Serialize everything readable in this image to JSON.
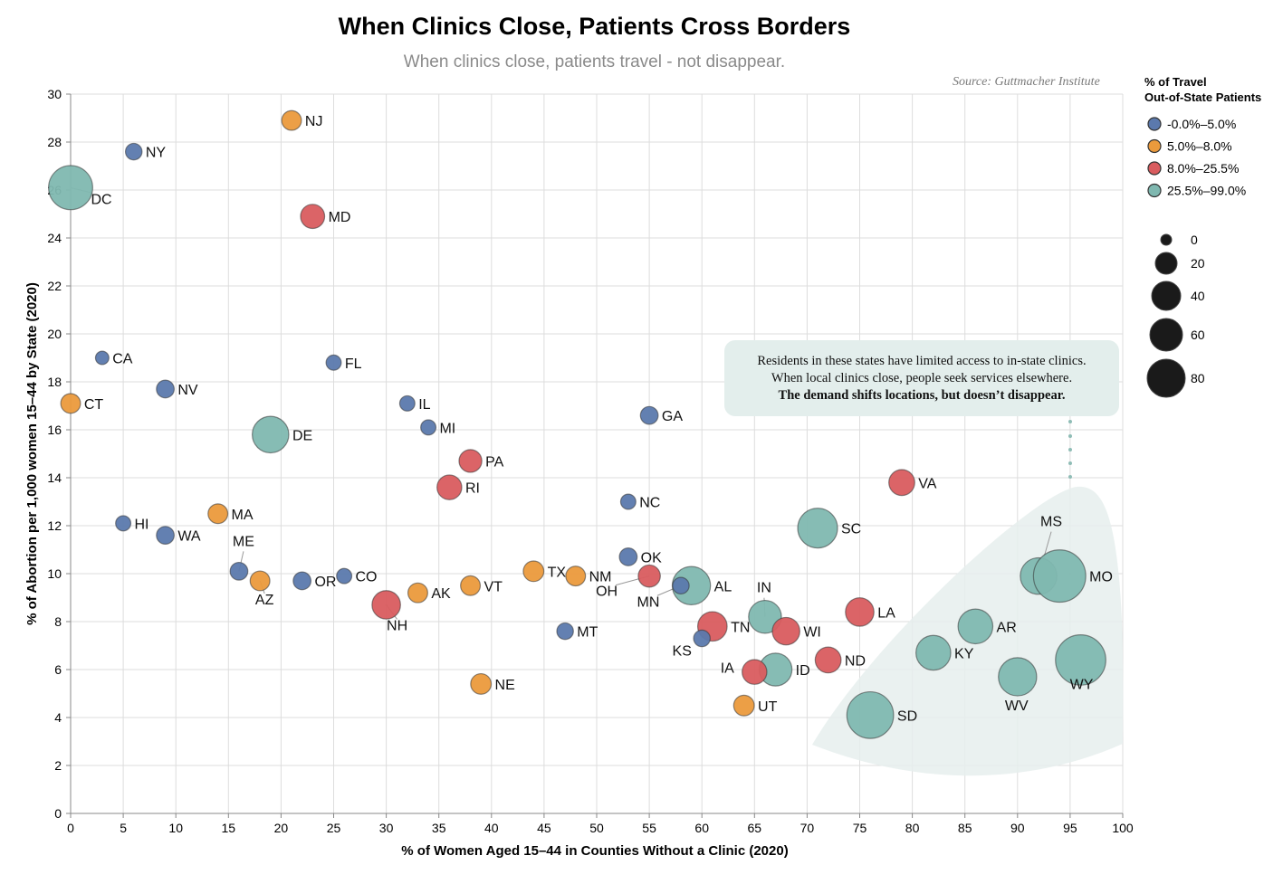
{
  "header": {
    "title": "When Clinics Close, Patients Cross Borders",
    "subtitle": "When clinics close, patients travel - not disappear.",
    "source": "Source: Guttmacher Institute"
  },
  "chart_data": {
    "type": "scatter",
    "title": "When Clinics Close, Patients Cross Borders",
    "subtitle": "When clinics close, patients travel - not disappear.",
    "xlabel": "% of Women Aged 15–44 in Counties Without a Clinic (2020)",
    "ylabel": "% of Abortion per 1,000 women 15–44 by State (2020)",
    "xlim": [
      0,
      100
    ],
    "ylim": [
      0,
      30
    ],
    "x_ticks": [
      0,
      5,
      10,
      15,
      20,
      25,
      30,
      35,
      40,
      45,
      50,
      55,
      60,
      65,
      70,
      75,
      80,
      85,
      90,
      95,
      100
    ],
    "y_ticks": [
      0,
      2,
      4,
      6,
      8,
      10,
      12,
      14,
      16,
      18,
      20,
      22,
      24,
      26,
      28,
      30
    ],
    "grid": true,
    "legend_placement": "right",
    "color_legend": {
      "title": [
        "% of Travel",
        "Out-of-State Patients"
      ],
      "items": [
        {
          "label": "-0.0%–5.0%",
          "color": "#5b79ad"
        },
        {
          "label": "5.0%–8.0%",
          "color": "#eb9a3c"
        },
        {
          "label": "8.0%–25.5%",
          "color": "#d95c5f"
        },
        {
          "label": "25.5%–99.0%",
          "color": "#7fb8b0"
        }
      ]
    },
    "size_legend": {
      "values": [
        0,
        20,
        40,
        60,
        80
      ]
    },
    "annotation": {
      "lines": [
        "Residents in these states have limited access to in-state clinics.",
        "When local clinics close, people seek services elsewhere."
      ],
      "bold_line": "The demand shifts locations, but doesn’t disappear."
    },
    "points": [
      {
        "state": "DC",
        "x": 0,
        "y": 26.1,
        "travel": 65,
        "group": 3
      },
      {
        "state": "NJ",
        "x": 21,
        "y": 28.9,
        "travel": 6,
        "group": 1
      },
      {
        "state": "NY",
        "x": 6,
        "y": 27.6,
        "travel": 3,
        "group": 0
      },
      {
        "state": "MD",
        "x": 23,
        "y": 24.9,
        "travel": 12,
        "group": 2
      },
      {
        "state": "CA",
        "x": 3,
        "y": 19.0,
        "travel": 1,
        "group": 0
      },
      {
        "state": "FL",
        "x": 25,
        "y": 18.8,
        "travel": 2,
        "group": 0
      },
      {
        "state": "NV",
        "x": 9,
        "y": 17.7,
        "travel": 4,
        "group": 0
      },
      {
        "state": "CT",
        "x": 0,
        "y": 17.1,
        "travel": 6,
        "group": 1
      },
      {
        "state": "IL",
        "x": 32,
        "y": 17.1,
        "travel": 2,
        "group": 0
      },
      {
        "state": "GA",
        "x": 55,
        "y": 16.6,
        "travel": 4,
        "group": 0
      },
      {
        "state": "MI",
        "x": 34,
        "y": 16.1,
        "travel": 2,
        "group": 0
      },
      {
        "state": "DE",
        "x": 19,
        "y": 15.8,
        "travel": 40,
        "group": 3
      },
      {
        "state": "PA",
        "x": 38,
        "y": 14.7,
        "travel": 10,
        "group": 2
      },
      {
        "state": "RI",
        "x": 36,
        "y": 13.6,
        "travel": 13,
        "group": 2
      },
      {
        "state": "VA",
        "x": 79,
        "y": 13.8,
        "travel": 15,
        "group": 2
      },
      {
        "state": "NC",
        "x": 53,
        "y": 13.0,
        "travel": 2,
        "group": 0
      },
      {
        "state": "HI",
        "x": 5,
        "y": 12.1,
        "travel": 2,
        "group": 0
      },
      {
        "state": "MA",
        "x": 14,
        "y": 12.5,
        "travel": 6,
        "group": 1
      },
      {
        "state": "SC",
        "x": 71,
        "y": 11.9,
        "travel": 50,
        "group": 3
      },
      {
        "state": "WA",
        "x": 9,
        "y": 11.6,
        "travel": 4,
        "group": 0
      },
      {
        "state": "MS",
        "x": 92,
        "y": 9.9,
        "travel": 40,
        "group": 3
      },
      {
        "state": "MO",
        "x": 94,
        "y": 9.9,
        "travel": 99,
        "group": 3
      },
      {
        "state": "OK",
        "x": 53,
        "y": 10.7,
        "travel": 4,
        "group": 0
      },
      {
        "state": "ME",
        "x": 16,
        "y": 10.1,
        "travel": 4,
        "group": 0
      },
      {
        "state": "TX",
        "x": 44,
        "y": 10.1,
        "travel": 7,
        "group": 1
      },
      {
        "state": "NM",
        "x": 48,
        "y": 9.9,
        "travel": 6,
        "group": 1
      },
      {
        "state": "OH",
        "x": 55,
        "y": 9.9,
        "travel": 9,
        "group": 2
      },
      {
        "state": "CO",
        "x": 26,
        "y": 9.9,
        "travel": 2,
        "group": 0
      },
      {
        "state": "OR",
        "x": 22,
        "y": 9.7,
        "travel": 4,
        "group": 0
      },
      {
        "state": "AZ",
        "x": 18,
        "y": 9.7,
        "travel": 6,
        "group": 1
      },
      {
        "state": "AL",
        "x": 59,
        "y": 9.5,
        "travel": 45,
        "group": 3
      },
      {
        "state": "MN",
        "x": 58,
        "y": 9.5,
        "travel": 3,
        "group": 0
      },
      {
        "state": "VT",
        "x": 38,
        "y": 9.5,
        "travel": 6,
        "group": 1
      },
      {
        "state": "AK",
        "x": 33,
        "y": 9.2,
        "travel": 6,
        "group": 1
      },
      {
        "state": "NH",
        "x": 30,
        "y": 8.7,
        "travel": 20,
        "group": 2
      },
      {
        "state": "LA",
        "x": 75,
        "y": 8.4,
        "travel": 20,
        "group": 2
      },
      {
        "state": "IN",
        "x": 66,
        "y": 8.2,
        "travel": 30,
        "group": 3
      },
      {
        "state": "AR",
        "x": 86,
        "y": 7.8,
        "travel": 35,
        "group": 3
      },
      {
        "state": "TN",
        "x": 61,
        "y": 7.8,
        "travel": 22,
        "group": 2
      },
      {
        "state": "WI",
        "x": 68,
        "y": 7.6,
        "travel": 18,
        "group": 2
      },
      {
        "state": "MT",
        "x": 47,
        "y": 7.6,
        "travel": 3,
        "group": 0
      },
      {
        "state": "KS",
        "x": 60,
        "y": 7.3,
        "travel": 3,
        "group": 0
      },
      {
        "state": "KY",
        "x": 82,
        "y": 6.7,
        "travel": 35,
        "group": 3
      },
      {
        "state": "WY",
        "x": 96,
        "y": 6.4,
        "travel": 90,
        "group": 3
      },
      {
        "state": "ND",
        "x": 72,
        "y": 6.4,
        "travel": 15,
        "group": 2
      },
      {
        "state": "ID",
        "x": 67,
        "y": 6.0,
        "travel": 30,
        "group": 3
      },
      {
        "state": "IA",
        "x": 65,
        "y": 5.9,
        "travel": 13,
        "group": 2
      },
      {
        "state": "WV",
        "x": 90,
        "y": 5.7,
        "travel": 45,
        "group": 3
      },
      {
        "state": "NE",
        "x": 39,
        "y": 5.4,
        "travel": 7,
        "group": 1
      },
      {
        "state": "UT",
        "x": 64,
        "y": 4.5,
        "travel": 7,
        "group": 1
      },
      {
        "state": "SD",
        "x": 76,
        "y": 4.1,
        "travel": 75,
        "group": 3
      }
    ]
  }
}
